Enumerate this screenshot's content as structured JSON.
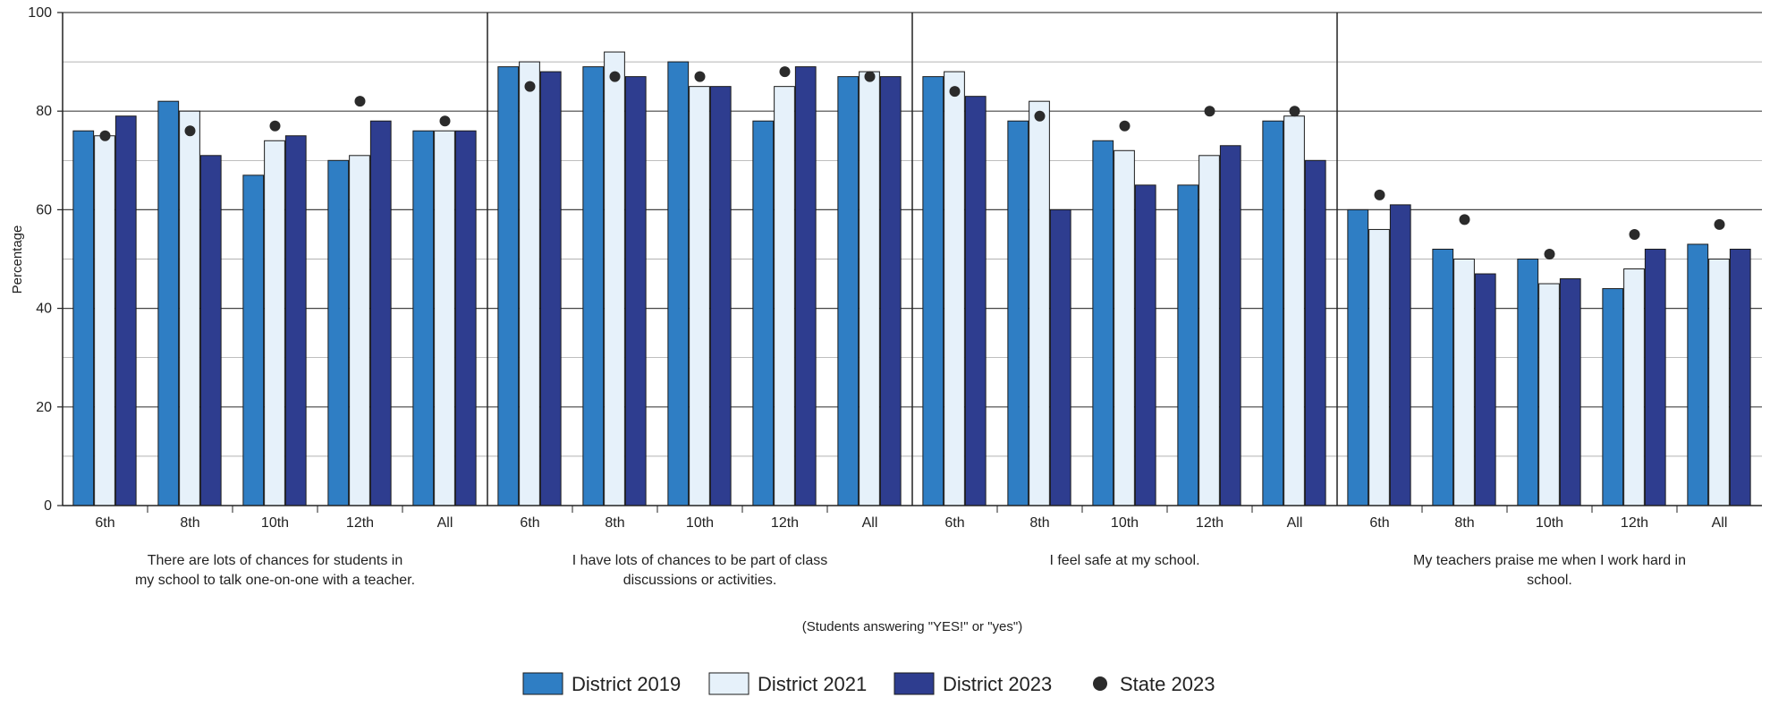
{
  "chart_data": {
    "type": "bar",
    "ylabel": "Percentage",
    "ylim": [
      0,
      100
    ],
    "yticks": [
      "0",
      "20",
      "40",
      "60",
      "80",
      "100"
    ],
    "grid": true,
    "note": "(Students answering \"YES!\" or \"yes\")",
    "legend_position": "bottom",
    "series": [
      {
        "name": "District 2019",
        "color": "#2f7ec4",
        "kind": "bar"
      },
      {
        "name": "District 2021",
        "color": "#e6f1fa",
        "kind": "bar"
      },
      {
        "name": "District 2023",
        "color": "#2e3d8f",
        "kind": "bar"
      },
      {
        "name": "State 2023",
        "color": "#2b2b2b",
        "kind": "marker"
      }
    ],
    "groups": [
      {
        "label_lines": [
          "There are lots of chances for students in",
          "my school to talk one-on-one with a teacher."
        ],
        "categories": [
          "6th",
          "8th",
          "10th",
          "12th",
          "All"
        ],
        "district_2019": [
          76,
          82,
          67,
          70,
          76
        ],
        "district_2021": [
          75,
          80,
          74,
          71,
          76
        ],
        "district_2023": [
          79,
          71,
          75,
          78,
          76
        ],
        "state_2023": [
          75,
          76,
          77,
          82,
          78
        ]
      },
      {
        "label_lines": [
          "I have lots of chances to be part of class",
          "discussions or activities."
        ],
        "categories": [
          "6th",
          "8th",
          "10th",
          "12th",
          "All"
        ],
        "district_2019": [
          89,
          89,
          90,
          78,
          87
        ],
        "district_2021": [
          90,
          92,
          85,
          85,
          88
        ],
        "district_2023": [
          88,
          87,
          85,
          89,
          87
        ],
        "state_2023": [
          85,
          87,
          87,
          88,
          87
        ]
      },
      {
        "label_lines": [
          "I feel safe at my school."
        ],
        "categories": [
          "6th",
          "8th",
          "10th",
          "12th",
          "All"
        ],
        "district_2019": [
          87,
          78,
          74,
          65,
          78
        ],
        "district_2021": [
          88,
          82,
          72,
          71,
          79
        ],
        "district_2023": [
          83,
          60,
          65,
          73,
          70
        ],
        "state_2023": [
          84,
          79,
          77,
          80,
          80
        ]
      },
      {
        "label_lines": [
          "My teachers praise me when I work hard in",
          "school."
        ],
        "categories": [
          "6th",
          "8th",
          "10th",
          "12th",
          "All"
        ],
        "district_2019": [
          60,
          52,
          50,
          44,
          53
        ],
        "district_2021": [
          56,
          50,
          45,
          48,
          50
        ],
        "district_2023": [
          61,
          47,
          46,
          52,
          52
        ],
        "state_2023": [
          63,
          58,
          51,
          55,
          57
        ]
      }
    ]
  }
}
